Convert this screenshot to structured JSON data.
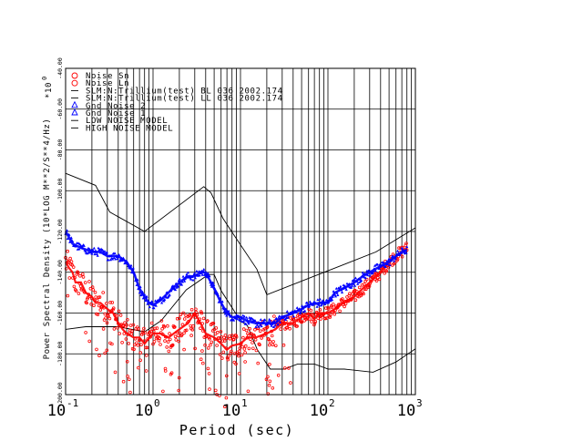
{
  "chart_data": {
    "type": "scatter",
    "title": "",
    "xlabel": "Period (sec)",
    "ylabel": "Power Spectral Density (10*LOG M**2/S**4/Hz)",
    "y_multiplier_label": "*10",
    "y_multiplier_exp": "0",
    "x_scale": "log",
    "xlim": [
      0.1,
      1000
    ],
    "ylim": [
      -200,
      -40
    ],
    "x_ticks": [
      {
        "base": "10",
        "exp": "-1",
        "value": 0.1
      },
      {
        "base": "10",
        "exp": "0",
        "value": 1
      },
      {
        "base": "10",
        "exp": "1",
        "value": 10
      },
      {
        "base": "10",
        "exp": "2",
        "value": 100
      },
      {
        "base": "10",
        "exp": "3",
        "value": 1000
      }
    ],
    "y_ticks": [
      {
        "value": -40,
        "label": "-40.00"
      },
      {
        "value": -60,
        "label": "-60.00"
      },
      {
        "value": -80,
        "label": "-80.00"
      },
      {
        "value": -100,
        "label": "-100.00"
      },
      {
        "value": -120,
        "label": "-120.00"
      },
      {
        "value": -140,
        "label": "-140.00"
      },
      {
        "value": -160,
        "label": "-160.00"
      },
      {
        "value": -180,
        "label": "-180.00"
      },
      {
        "value": -200,
        "label": "-200.00"
      }
    ],
    "grid": true,
    "legend_position": "top-left",
    "legend": [
      {
        "label": "Noise Sn",
        "symbol": "circle",
        "color": "#ff0000"
      },
      {
        "label": "Noise Ln",
        "symbol": "circle",
        "color": "#ff0000"
      },
      {
        "label": "SLM:N:Trillium(test) BL 036 2002.174",
        "symbol": "line",
        "color": "#000000"
      },
      {
        "label": "SLM:N:Trillium(test) LL 036 2002.174",
        "symbol": "line",
        "color": "#000000"
      },
      {
        "label": "Gnd Noise 2",
        "symbol": "triangle",
        "color": "#0000ff"
      },
      {
        "label": "Gnd Noise 1",
        "symbol": "triangle",
        "color": "#0000ff"
      },
      {
        "label": "LOW NOISE MODEL",
        "symbol": "line",
        "color": "#000000"
      },
      {
        "label": "HIGH NOISE MODEL",
        "symbol": "line",
        "color": "#000000"
      }
    ],
    "series": [
      {
        "name": "Noise Sn",
        "kind": "points",
        "color": "#ff0000",
        "x": [
          0.1,
          0.11,
          0.12,
          0.13,
          0.15,
          0.17,
          0.2,
          0.22,
          0.25,
          0.3,
          0.35,
          0.4,
          0.45,
          0.5,
          0.6,
          0.7,
          0.8,
          1.0,
          1.2,
          1.5,
          2.0,
          2.5,
          3.0,
          3.5,
          4.0,
          5.0,
          6.0,
          7.0,
          8.0,
          10,
          12,
          15,
          20,
          25,
          30,
          40,
          50,
          60,
          70,
          80,
          100,
          120,
          150,
          200,
          250,
          300,
          400,
          500,
          600,
          700,
          800
        ],
        "y": [
          -135,
          -138,
          -140,
          -145,
          -145,
          -150,
          -152,
          -155,
          -155,
          -158,
          -160,
          -165,
          -168,
          -170,
          -172,
          -172,
          -175,
          -170,
          -170,
          -172,
          -168,
          -165,
          -160,
          -165,
          -170,
          -172,
          -175,
          -178,
          -176,
          -175,
          -172,
          -172,
          -170,
          -168,
          -165,
          -165,
          -162,
          -160,
          -163,
          -160,
          -160,
          -158,
          -155,
          -152,
          -148,
          -145,
          -140,
          -135,
          -132,
          -130,
          -128
        ]
      },
      {
        "name": "Gnd Noise 2",
        "kind": "points",
        "color": "#0000ff",
        "x": [
          0.1,
          0.11,
          0.12,
          0.15,
          0.2,
          0.25,
          0.3,
          0.4,
          0.5,
          0.6,
          0.7,
          0.8,
          0.9,
          1.0,
          1.2,
          1.5,
          2.0,
          2.5,
          3.0,
          3.5,
          4.0,
          5.0,
          6.0,
          7.0,
          8.0,
          10,
          12,
          15,
          20,
          25,
          30,
          40,
          50,
          60,
          80,
          100,
          120,
          150,
          200,
          250,
          300,
          400,
          500,
          600,
          700,
          800
        ],
        "y": [
          -120,
          -123,
          -126,
          -128,
          -130,
          -130,
          -132,
          -132,
          -135,
          -140,
          -148,
          -152,
          -155,
          -156,
          -154,
          -150,
          -145,
          -142,
          -142,
          -140,
          -140,
          -148,
          -155,
          -160,
          -162,
          -162,
          -164,
          -165,
          -165,
          -165,
          -162,
          -160,
          -158,
          -156,
          -155,
          -155,
          -150,
          -148,
          -145,
          -142,
          -140,
          -137,
          -135,
          -132,
          -130,
          -129
        ]
      },
      {
        "name": "LOW NOISE MODEL",
        "kind": "line",
        "color": "#000000",
        "x": [
          0.1,
          0.17,
          0.4,
          0.8,
          1.24,
          2.4,
          4.3,
          5.0,
          6.0,
          10,
          12,
          15.6,
          21.9,
          31.6,
          45,
          70,
          101,
          154,
          328,
          600,
          1000
        ],
        "y": [
          -168,
          -166.7,
          -166.7,
          -169.2,
          -163.7,
          -148.6,
          -141.1,
          -141.1,
          -149.0,
          -163.8,
          -166.2,
          -178.0,
          -187.5,
          -187.5,
          -185.0,
          -185.0,
          -187.5,
          -187.5,
          -189.0,
          -184.0,
          -177.5
        ]
      },
      {
        "name": "HIGH NOISE MODEL",
        "kind": "line",
        "color": "#000000",
        "x": [
          0.1,
          0.22,
          0.32,
          0.8,
          3.8,
          4.6,
          6.3,
          7.9,
          15.4,
          20,
          354.8,
          1000
        ],
        "y": [
          -91.5,
          -97.4,
          -110.5,
          -120.0,
          -98.0,
          -101.0,
          -113.5,
          -120.0,
          -138.5,
          -151.0,
          -130.0,
          -118.2
        ]
      }
    ]
  }
}
